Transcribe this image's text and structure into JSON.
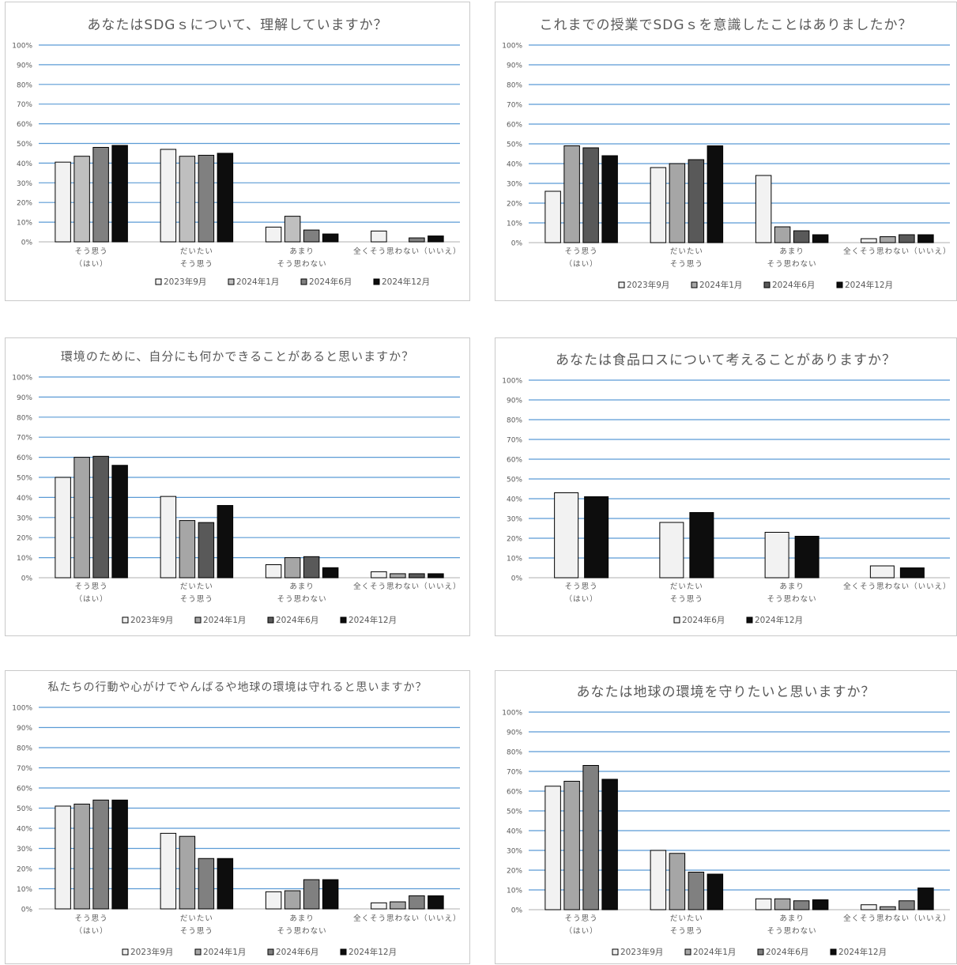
{
  "styles": {
    "grid_color": "#5b9bd5",
    "text_color": "#595959",
    "bar_stroke": "#000000",
    "series_colors": {
      "2023年9月": "#f2f2f2",
      "2024年1月": "#a6a6a6",
      "2024年6月": "#808080",
      "2024年12月": "#0d0d0d"
    }
  },
  "chart_data": [
    {
      "type": "bar",
      "title": "あなたはSDGｓについて、理解していますか？",
      "categories": [
        [
          "そう思う",
          "（はい）"
        ],
        [
          "だいたい",
          "そう思う"
        ],
        [
          "あまり",
          "そう思わない"
        ],
        [
          "全くそう思わない（いいえ）"
        ]
      ],
      "y_ticks": [
        "0%",
        "10%",
        "20%",
        "30%",
        "40%",
        "50%",
        "60%",
        "70%",
        "80%",
        "90%",
        "100%"
      ],
      "ylim": [
        0,
        100
      ],
      "grid": true,
      "legend_position": "bottom",
      "series": [
        {
          "name": "2023年9月",
          "fill": "#f2f2f2",
          "values": [
            40.5,
            47,
            7.5,
            5.5
          ]
        },
        {
          "name": "2024年1月",
          "fill": "#bfbfbf",
          "values": [
            43.5,
            43.5,
            13,
            0
          ]
        },
        {
          "name": "2024年6月",
          "fill": "#808080",
          "values": [
            48,
            44,
            6,
            2
          ]
        },
        {
          "name": "2024年12月",
          "fill": "#0d0d0d",
          "values": [
            49,
            45,
            4,
            3
          ]
        }
      ]
    },
    {
      "type": "bar",
      "title": "これまでの授業でSDGｓを意識したことはありましたか？",
      "categories": [
        [
          "そう思う",
          "（はい）"
        ],
        [
          "だいたい",
          "そう思う"
        ],
        [
          "あまり",
          "そう思わない"
        ],
        [
          "全くそう思わない（いいえ）"
        ]
      ],
      "y_ticks": [
        "0%",
        "10%",
        "20%",
        "30%",
        "40%",
        "50%",
        "60%",
        "70%",
        "80%",
        "90%",
        "100%"
      ],
      "ylim": [
        0,
        100
      ],
      "grid": true,
      "legend_position": "bottom",
      "series": [
        {
          "name": "2023年9月",
          "fill": "#f2f2f2",
          "values": [
            26,
            38,
            34,
            2
          ]
        },
        {
          "name": "2024年1月",
          "fill": "#a6a6a6",
          "values": [
            49,
            40,
            8,
            3
          ]
        },
        {
          "name": "2024年6月",
          "fill": "#595959",
          "values": [
            48,
            42,
            6,
            4
          ]
        },
        {
          "name": "2024年12月",
          "fill": "#0d0d0d",
          "values": [
            44,
            49,
            4,
            4
          ]
        }
      ]
    },
    {
      "type": "bar",
      "title": "環境のために、自分にも何かできることがあると思いますか？",
      "categories": [
        [
          "そう思う",
          "（はい）"
        ],
        [
          "だいたい",
          "そう思う"
        ],
        [
          "あまり",
          "そう思わない"
        ],
        [
          "全くそう思わない（いいえ）"
        ]
      ],
      "y_ticks": [
        "0%",
        "10%",
        "20%",
        "30%",
        "40%",
        "50%",
        "60%",
        "70%",
        "80%",
        "90%",
        "100%"
      ],
      "ylim": [
        0,
        100
      ],
      "grid": true,
      "legend_position": "bottom",
      "series": [
        {
          "name": "2023年9月",
          "fill": "#f2f2f2",
          "values": [
            50,
            40.5,
            6.5,
            3
          ]
        },
        {
          "name": "2024年1月",
          "fill": "#a6a6a6",
          "values": [
            60,
            28.5,
            10,
            2
          ]
        },
        {
          "name": "2024年6月",
          "fill": "#595959",
          "values": [
            60.5,
            27.5,
            10.5,
            2
          ]
        },
        {
          "name": "2024年12月",
          "fill": "#0d0d0d",
          "values": [
            56,
            36,
            5,
            2
          ]
        }
      ]
    },
    {
      "type": "bar",
      "title": "あなたは食品ロスについて考えることがありますか？",
      "categories": [
        [
          "そう思う",
          "（はい）"
        ],
        [
          "だいたい",
          "そう思う"
        ],
        [
          "あまり",
          "そう思わない"
        ],
        [
          "全くそう思わない（いいえ）"
        ]
      ],
      "y_ticks": [
        "0%",
        "10%",
        "20%",
        "30%",
        "40%",
        "50%",
        "60%",
        "70%",
        "80%",
        "90%",
        "100%"
      ],
      "ylim": [
        0,
        100
      ],
      "grid": true,
      "legend_position": "bottom",
      "series": [
        {
          "name": "2024年6月",
          "fill": "#f2f2f2",
          "values": [
            43,
            28,
            23,
            6
          ]
        },
        {
          "name": "2024年12月",
          "fill": "#0d0d0d",
          "values": [
            41,
            33,
            21,
            5
          ]
        }
      ]
    },
    {
      "type": "bar",
      "title": "私たちの行動や心がけでやんばるや地球の環境は守れると思いますか？",
      "categories": [
        [
          "そう思う",
          "（はい）"
        ],
        [
          "だいたい",
          "そう思う"
        ],
        [
          "あまり",
          "そう思わない"
        ],
        [
          "全くそう思わない（いいえ）"
        ]
      ],
      "y_ticks": [
        "0%",
        "10%",
        "20%",
        "30%",
        "40%",
        "50%",
        "60%",
        "70%",
        "80%",
        "90%",
        "100%"
      ],
      "ylim": [
        0,
        100
      ],
      "grid": true,
      "legend_position": "bottom",
      "series": [
        {
          "name": "2023年9月",
          "fill": "#f2f2f2",
          "values": [
            51,
            37.5,
            8.5,
            3
          ]
        },
        {
          "name": "2024年1月",
          "fill": "#a6a6a6",
          "values": [
            52,
            36,
            9,
            3.5
          ]
        },
        {
          "name": "2024年6月",
          "fill": "#808080",
          "values": [
            54,
            25,
            14.5,
            6.5
          ]
        },
        {
          "name": "2024年12月",
          "fill": "#0d0d0d",
          "values": [
            54,
            25,
            14.5,
            6.5
          ]
        }
      ]
    },
    {
      "type": "bar",
      "title": "あなたは地球の環境を守りたいと思いますか？",
      "categories": [
        [
          "そう思う",
          "（はい）"
        ],
        [
          "だいたい",
          "そう思う"
        ],
        [
          "あまり",
          "そう思わない"
        ],
        [
          "全くそう思わない（いいえ）"
        ]
      ],
      "y_ticks": [
        "0%",
        "10%",
        "20%",
        "30%",
        "40%",
        "50%",
        "60%",
        "70%",
        "80%",
        "90%",
        "100%"
      ],
      "ylim": [
        0,
        100
      ],
      "grid": true,
      "legend_position": "bottom",
      "series": [
        {
          "name": "2023年9月",
          "fill": "#f2f2f2",
          "values": [
            62.5,
            30,
            5.5,
            2.5
          ]
        },
        {
          "name": "2024年1月",
          "fill": "#a6a6a6",
          "values": [
            65,
            28.5,
            5.5,
            1.5
          ]
        },
        {
          "name": "2024年6月",
          "fill": "#808080",
          "values": [
            73,
            19,
            4.5,
            4.5
          ]
        },
        {
          "name": "2024年12月",
          "fill": "#0d0d0d",
          "values": [
            66,
            18,
            5,
            11
          ]
        }
      ]
    }
  ]
}
